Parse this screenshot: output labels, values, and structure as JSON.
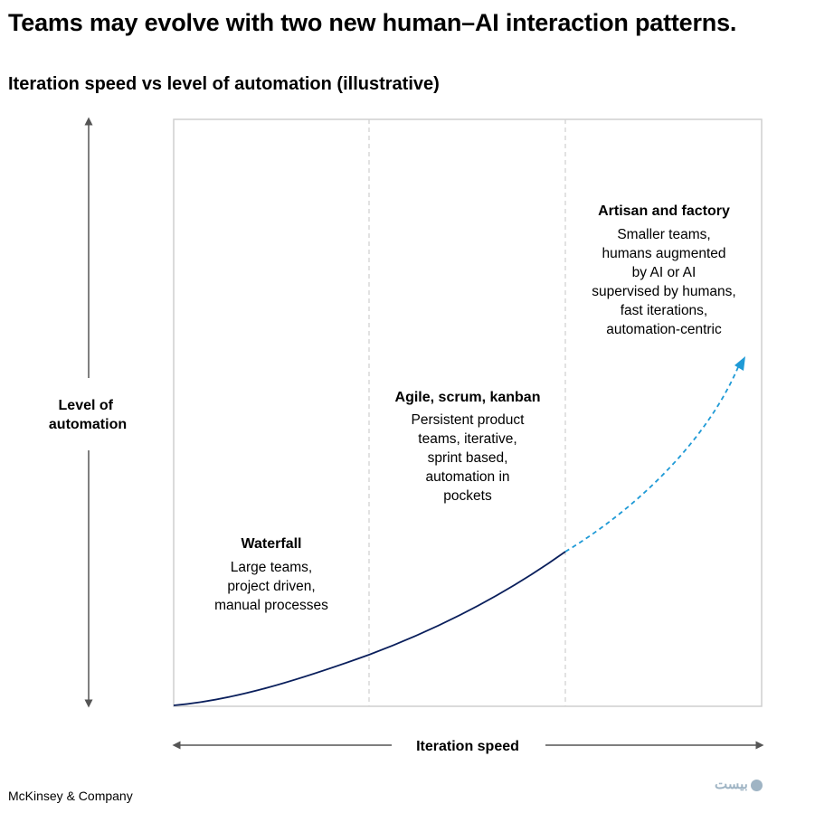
{
  "header": {
    "title": "Teams may evolve with two new human–AI interaction patterns.",
    "subtitle": "Iteration speed vs level of automation (illustrative)"
  },
  "footer": {
    "source": "McKinsey & Company"
  },
  "watermark": {
    "text": "بیست"
  },
  "colors": {
    "curve_solid": "#0a1f5c",
    "curve_dashed": "#1f9ad6",
    "frame": "#cfcfcf",
    "axis": "#555555"
  },
  "chart_data": {
    "type": "line",
    "title": "Iteration speed vs level of automation (illustrative)",
    "xlabel": "Iteration speed",
    "ylabel": "Level of\nautomation",
    "grid": false,
    "zones": [
      {
        "heading": "Waterfall",
        "lines": [
          "Large teams,",
          "project driven,",
          "manual processes"
        ]
      },
      {
        "heading": "Agile, scrum, kanban",
        "lines": [
          "Persistent product",
          "teams, iterative,",
          "sprint based,",
          "automation in",
          "pockets"
        ]
      },
      {
        "heading": "Artisan and factory",
        "lines": [
          "Smaller teams,",
          "humans augmented",
          "by AI or AI",
          "supervised by humans,",
          "fast iterations,",
          "automation-centric"
        ]
      }
    ],
    "series": [
      {
        "style": "solid",
        "x": [
          0,
          0.1,
          0.2,
          0.3,
          0.4,
          0.5,
          0.6,
          0.667
        ],
        "y": [
          0,
          0.026,
          0.06,
          0.1,
          0.15,
          0.21,
          0.28,
          0.26
        ]
      },
      {
        "style": "dashed",
        "x": [
          0.667,
          0.75,
          0.85,
          0.97
        ],
        "y": [
          0.26,
          0.36,
          0.5,
          0.59
        ]
      }
    ]
  }
}
